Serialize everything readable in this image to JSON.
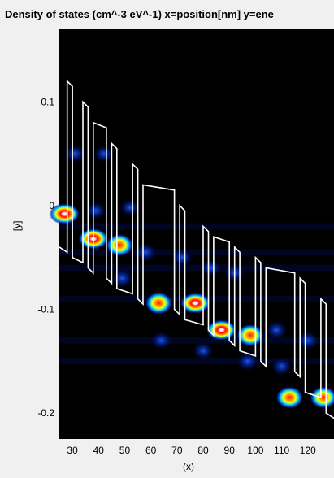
{
  "chart_data": {
    "type": "heatmap",
    "title": "Density of states (cm^-3 eV^-1)  x=position[nm]  y=ene",
    "xlabel": "(x)",
    "ylabel": "[y]",
    "xlim": [
      25,
      130
    ],
    "ylim": [
      -0.225,
      0.17
    ],
    "xticks": [
      30,
      40,
      50,
      60,
      70,
      80,
      90,
      100,
      110,
      120
    ],
    "yticks": [
      0.1,
      0,
      -0.1,
      -0.2
    ],
    "background": "#000000",
    "colormap": "jet",
    "band_edge": {
      "color": "#ffffff",
      "x": [
        25,
        28,
        28,
        30,
        30,
        34,
        34,
        36,
        36,
        38,
        38,
        43,
        43,
        45,
        45,
        47,
        47,
        53,
        53,
        55,
        55,
        57,
        57,
        69,
        69,
        71,
        71,
        73,
        73,
        80,
        80,
        82,
        82,
        84,
        84,
        90,
        90,
        92,
        92,
        94,
        94,
        100,
        100,
        102,
        102,
        104,
        104,
        115,
        115,
        117,
        117,
        119,
        119,
        125,
        125,
        127,
        127,
        130
      ],
      "y": [
        -0.04,
        -0.045,
        0.12,
        0.115,
        -0.05,
        -0.055,
        0.1,
        0.095,
        -0.06,
        -0.065,
        0.08,
        0.075,
        -0.07,
        -0.075,
        0.06,
        0.055,
        -0.08,
        -0.085,
        0.04,
        0.035,
        -0.09,
        -0.095,
        0.02,
        0.015,
        -0.1,
        -0.105,
        0.0,
        -0.005,
        -0.11,
        -0.115,
        -0.02,
        -0.025,
        -0.12,
        -0.125,
        -0.03,
        -0.035,
        -0.13,
        -0.135,
        -0.04,
        -0.045,
        -0.14,
        -0.145,
        -0.05,
        -0.055,
        -0.15,
        -0.155,
        -0.06,
        -0.065,
        -0.16,
        -0.165,
        -0.07,
        -0.075,
        -0.18,
        -0.185,
        -0.09,
        -0.095,
        -0.2,
        -0.205
      ]
    },
    "peaks": [
      {
        "x": 27,
        "y": -0.008,
        "intensity": 1.0
      },
      {
        "x": 38,
        "y": -0.032,
        "intensity": 0.95
      },
      {
        "x": 48,
        "y": -0.038,
        "intensity": 0.9
      },
      {
        "x": 49,
        "y": -0.07,
        "intensity": 0.35
      },
      {
        "x": 63,
        "y": -0.094,
        "intensity": 0.85
      },
      {
        "x": 77,
        "y": -0.094,
        "intensity": 1.0
      },
      {
        "x": 87,
        "y": -0.12,
        "intensity": 0.95
      },
      {
        "x": 98,
        "y": -0.125,
        "intensity": 0.9
      },
      {
        "x": 113,
        "y": -0.185,
        "intensity": 0.85
      },
      {
        "x": 126,
        "y": -0.185,
        "intensity": 0.85
      },
      {
        "x": 31,
        "y": 0.05,
        "intensity": 0.25
      },
      {
        "x": 42,
        "y": 0.05,
        "intensity": 0.2
      },
      {
        "x": 39,
        "y": -0.005,
        "intensity": 0.22
      },
      {
        "x": 52,
        "y": -0.002,
        "intensity": 0.2
      },
      {
        "x": 58,
        "y": -0.045,
        "intensity": 0.3
      },
      {
        "x": 72,
        "y": -0.05,
        "intensity": 0.25
      },
      {
        "x": 83,
        "y": -0.06,
        "intensity": 0.2
      },
      {
        "x": 92,
        "y": -0.065,
        "intensity": 0.25
      },
      {
        "x": 64,
        "y": -0.13,
        "intensity": 0.25
      },
      {
        "x": 80,
        "y": -0.14,
        "intensity": 0.25
      },
      {
        "x": 97,
        "y": -0.15,
        "intensity": 0.3
      },
      {
        "x": 108,
        "y": -0.12,
        "intensity": 0.3
      },
      {
        "x": 120,
        "y": -0.13,
        "intensity": 0.3
      },
      {
        "x": 110,
        "y": -0.155,
        "intensity": 0.25
      }
    ]
  }
}
